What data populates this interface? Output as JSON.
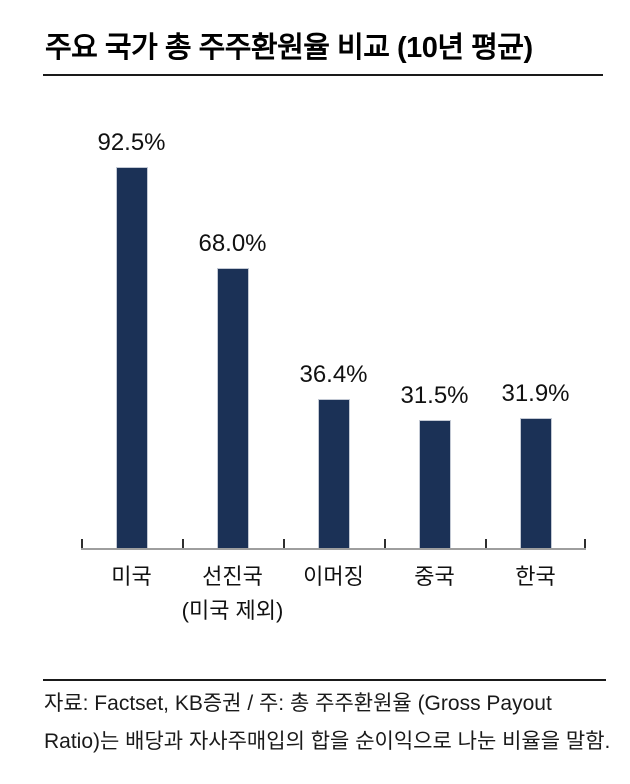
{
  "page": {
    "title": "주요 국가 총 주주환원율 비교 (10년 평균)",
    "footer": {
      "line1": "자료: Factset, KB증권 / 주: 총 주주환원율 (Gross Payout",
      "line2": "Ratio)는 배당과 자사주매입의 합을 순이익으로 나눈 비율을 말함."
    }
  },
  "chart_data": {
    "type": "bar",
    "title": "주요 국가 총 주주환원율 비교 (10년 평균)",
    "categories": [
      "미국",
      "선진국",
      "이머징",
      "중국",
      "한국"
    ],
    "category_sublabels": [
      "",
      "(미국 제외)",
      "",
      "",
      ""
    ],
    "values": [
      92.5,
      68.0,
      36.4,
      31.5,
      31.9
    ],
    "data_labels": [
      "92.5%",
      "68.0%",
      "36.4%",
      "31.5%",
      "31.9%"
    ],
    "unit": "%",
    "ylim": [
      0,
      100
    ],
    "grid": false,
    "legend": false,
    "bar_color": "#1b3156",
    "axis_color": "#9e9e9e",
    "source_note": "자료: Factset, KB증권 / 주: 총 주주환원율 (Gross Payout Ratio)는 배당과 자사주매입의 합을 순이익으로 나눈 비율을 말함."
  }
}
